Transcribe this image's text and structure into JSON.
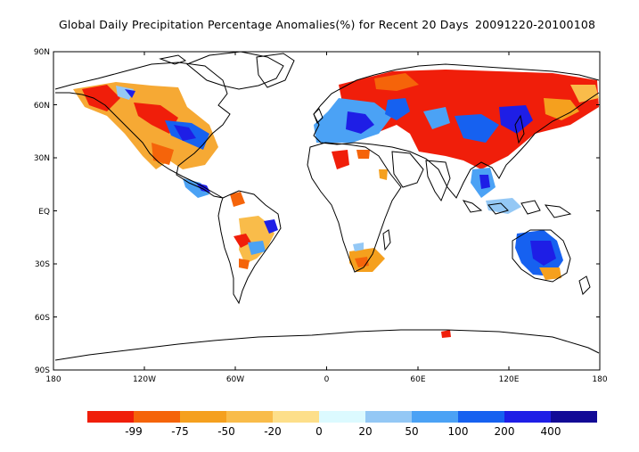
{
  "title": {
    "main": "Global Daily Precipitation Percentage Anomalies(%) for Recent 20 Days",
    "dates": "20091220-20100108"
  },
  "axes": {
    "y_ticks": [
      "90N",
      "60N",
      "30N",
      "EQ",
      "30S",
      "60S",
      "90S"
    ],
    "x_ticks": [
      "180",
      "120W",
      "60W",
      "0",
      "60E",
      "120E",
      "180"
    ]
  },
  "colorbar": {
    "colors": [
      "#f01e0a",
      "#f5640a",
      "#f5a01e",
      "#f9bc4a",
      "#fddf8a",
      "#dcfaff",
      "#94c8f5",
      "#4ba2f5",
      "#1661f0",
      "#1e1ee6",
      "#120a96"
    ],
    "labels": [
      "-99",
      "-75",
      "-50",
      "-20",
      "0",
      "20",
      "50",
      "100",
      "200",
      "400"
    ]
  }
}
